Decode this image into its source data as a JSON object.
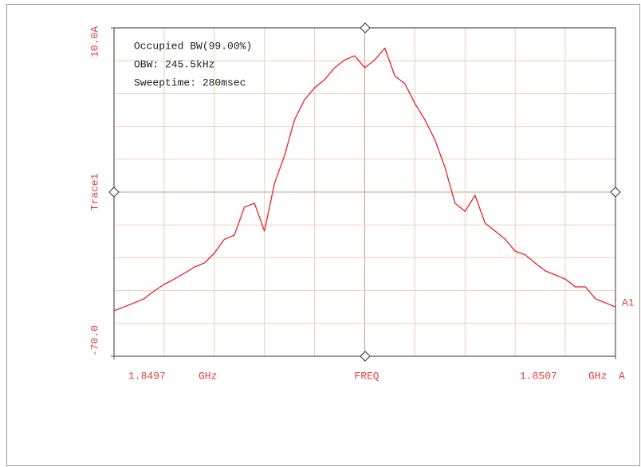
{
  "chart_data": {
    "type": "line",
    "y_label": "Trace1",
    "annotations": [
      "Occupied BW(99.00%)",
      "OBW: 245.5kHz",
      "Sweeptime: 280msec"
    ],
    "marker_label": "A1",
    "x_unit": "GHz",
    "x_center_label": "FREQ",
    "x_suffix": "A",
    "color": "#e8202a",
    "grid": true,
    "xlim": [
      1.8497,
      1.8507
    ],
    "xticks": [
      1.8497,
      1.8507
    ],
    "ylim": [
      -70,
      10
    ],
    "yticks": [
      {
        "value": 10,
        "label": "10.0A"
      },
      {
        "value": -70,
        "label": "-70.0"
      }
    ],
    "x": [
      1.8497,
      1.84972,
      1.84974,
      1.84976,
      1.84978,
      1.8498,
      1.84982,
      1.84984,
      1.84986,
      1.84988,
      1.8499,
      1.84992,
      1.84994,
      1.84996,
      1.84998,
      1.85,
      1.85002,
      1.85004,
      1.85006,
      1.85008,
      1.8501,
      1.85012,
      1.85014,
      1.85016,
      1.85018,
      1.8502,
      1.85022,
      1.85024,
      1.85026,
      1.85028,
      1.8503,
      1.85032,
      1.85034,
      1.85036,
      1.85038,
      1.8504,
      1.85042,
      1.85044,
      1.85046,
      1.85048,
      1.8505,
      1.85052,
      1.85054,
      1.85056,
      1.85058,
      1.8506,
      1.85062,
      1.85064,
      1.85066,
      1.85068,
      1.8507
    ],
    "values": [
      -58.9,
      -58.0,
      -57.0,
      -56.0,
      -54.1,
      -52.5,
      -51.2,
      -49.8,
      -48.3,
      -47.3,
      -44.9,
      -41.5,
      -40.5,
      -33.7,
      -32.7,
      -39.5,
      -27.9,
      -21.1,
      -12.4,
      -7.5,
      -4.6,
      -2.6,
      0.3,
      2.2,
      3.2,
      0.3,
      2.2,
      5.1,
      -1.7,
      -3.6,
      -8.4,
      -12.4,
      -17.3,
      -24.0,
      -32.7,
      -34.7,
      -30.8,
      -37.6,
      -39.5,
      -41.5,
      -44.4,
      -45.3,
      -47.3,
      -49.2,
      -50.2,
      -51.2,
      -53.1,
      -53.1,
      -56.0,
      -57.0,
      -58.0
    ]
  }
}
